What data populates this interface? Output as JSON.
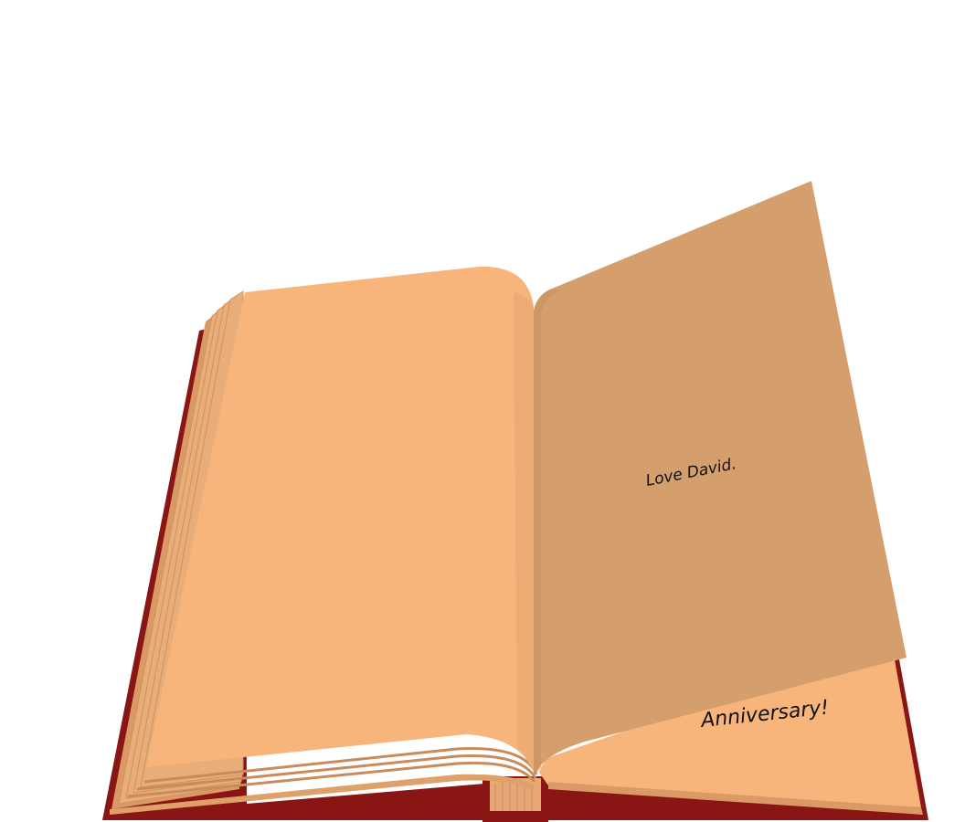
{
  "book": {
    "left_page_text": "",
    "flipping_page_text": "Love David.",
    "right_page_line_1": "...",
    "right_page_line_2": "Anniversary!"
  },
  "colors": {
    "cover": "#8a1515",
    "cover_dark": "#6e0f0f",
    "page": "#f7b57c",
    "page_shade": "#d99e6c",
    "flipping_page": "#d59e6d",
    "page_edge": "#e0a06a",
    "background": "#ffffff"
  }
}
